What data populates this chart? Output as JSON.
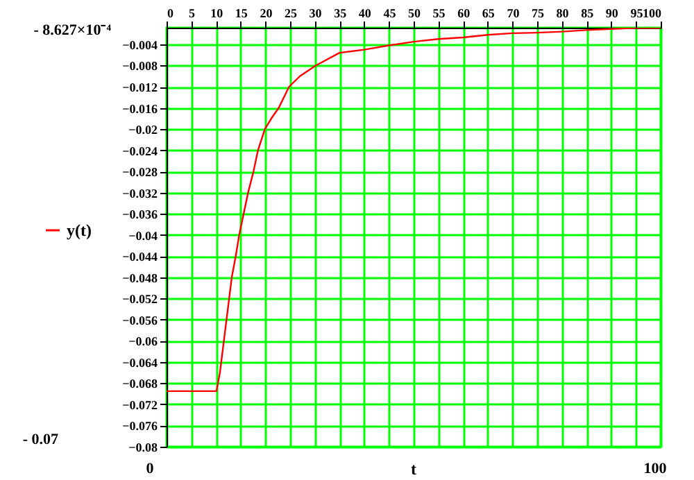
{
  "chart_data": {
    "type": "line",
    "xlabel": "t",
    "annotations": [
      "- 8.627×10⁻⁴",
      "- 0.07",
      "0",
      "100"
    ],
    "series": [
      {
        "name": "y(t)",
        "color": "#ff0000",
        "x": [
          0,
          5,
          9,
          10.1,
          10.8,
          11.6,
          12.4,
          13.2,
          14,
          14.7,
          15.6,
          16.5,
          17.6,
          18.5,
          19.9,
          21.2,
          22.7,
          24.8,
          27,
          30.2,
          35,
          40,
          45,
          50,
          55,
          60,
          65,
          70,
          75,
          80,
          85,
          90,
          95,
          100
        ],
        "values": [
          -0.0695,
          -0.0695,
          -0.0695,
          -0.0695,
          -0.066,
          -0.06,
          -0.054,
          -0.048,
          -0.044,
          -0.04,
          -0.036,
          -0.032,
          -0.028,
          -0.024,
          -0.02,
          -0.018,
          -0.016,
          -0.012,
          -0.01,
          -0.008,
          -0.0056,
          -0.005,
          -0.0042,
          -0.0035,
          -0.003,
          -0.0027,
          -0.0022,
          -0.0019,
          -0.0018,
          -0.0016,
          -0.0013,
          -0.0011,
          -0.0009,
          -0.0009
        ]
      }
    ],
    "xlim": [
      0,
      100
    ],
    "xticks": [
      0,
      5,
      10,
      15,
      20,
      25,
      30,
      35,
      40,
      45,
      50,
      55,
      60,
      65,
      70,
      75,
      80,
      85,
      90,
      95,
      100
    ],
    "ylim": [
      -0.08,
      -0.0008627
    ],
    "yticks": [
      -0.004,
      -0.008,
      -0.012,
      -0.016,
      -0.02,
      -0.024,
      -0.028,
      -0.032,
      -0.036,
      -0.04,
      -0.044,
      -0.048,
      -0.052,
      -0.056,
      -0.06,
      -0.064,
      -0.068,
      -0.072,
      -0.076,
      -0.08
    ],
    "grid": true,
    "legend": "left",
    "line_style": "solid",
    "marker": "none"
  }
}
